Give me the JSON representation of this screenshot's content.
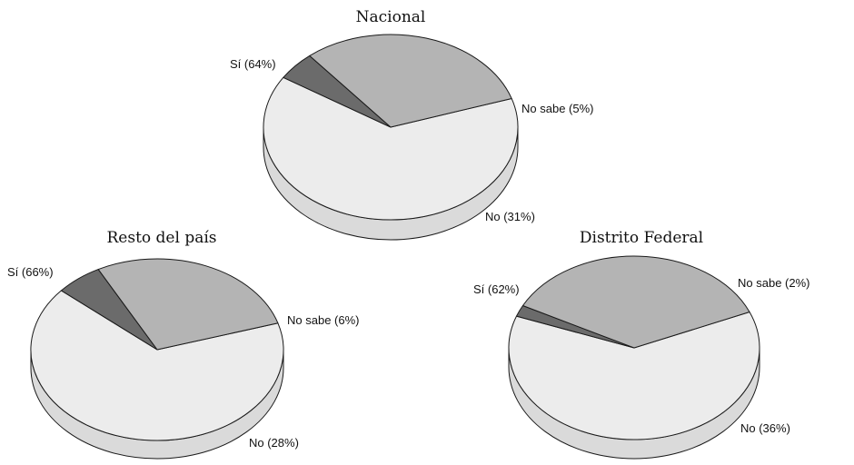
{
  "chart_data": [
    {
      "type": "pie",
      "title": "Nacional",
      "slices": [
        {
          "label": "Sí (64%)",
          "value": 64,
          "color": "#ececec",
          "side": "#dadada"
        },
        {
          "label": "No sabe (5%)",
          "value": 5,
          "color": "#6b6b6b",
          "side": "#555555"
        },
        {
          "label": "No (31%)",
          "value": 31,
          "color": "#b4b4b4",
          "side": "#a3a3a3"
        }
      ]
    },
    {
      "type": "pie",
      "title": "Resto del país",
      "slices": [
        {
          "label": "Sí (66%)",
          "value": 66,
          "color": "#ececec",
          "side": "#dadada"
        },
        {
          "label": "No sabe (6%)",
          "value": 6,
          "color": "#6b6b6b",
          "side": "#555555"
        },
        {
          "label": "No (28%)",
          "value": 28,
          "color": "#b4b4b4",
          "side": "#a3a3a3"
        }
      ]
    },
    {
      "type": "pie",
      "title": "Distrito Federal",
      "slices": [
        {
          "label": "Sí (62%)",
          "value": 62,
          "color": "#ececec",
          "side": "#dadada"
        },
        {
          "label": "No sabe (2%)",
          "value": 2,
          "color": "#6b6b6b",
          "side": "#555555"
        },
        {
          "label": "No (36%)",
          "value": 36,
          "color": "#b4b4b4",
          "side": "#a3a3a3"
        }
      ]
    }
  ]
}
